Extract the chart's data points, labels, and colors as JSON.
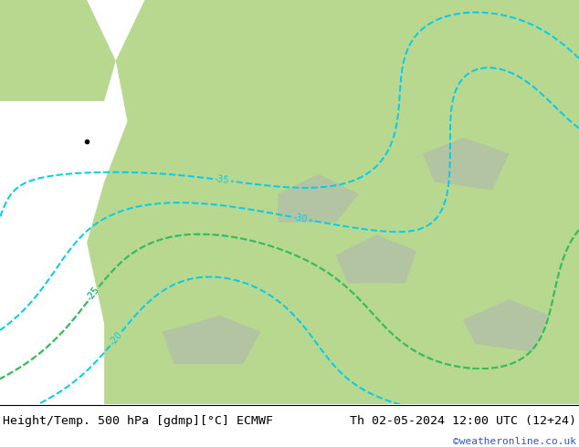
{
  "title_left": "Height/Temp. 500 hPa [gdmp][°C] ECMWF",
  "title_right": "Th 02-05-2024 12:00 UTC (12+24)",
  "watermark": "©weatheronline.co.uk",
  "land_color": "#b8d890",
  "ocean_color": "#d0e8f8",
  "gray_color": "#b0b8b0",
  "bottom_bar_color": "#ffffff",
  "title_fontsize": 9.5,
  "watermark_color": "#3355cc",
  "text_color": "#000000",
  "fig_width": 6.34,
  "fig_height": 4.9,
  "height_levels": [
    544,
    552,
    560,
    568,
    576,
    584,
    588
  ],
  "temp_cyan_levels": [
    -35,
    -30,
    -25,
    -20,
    -15
  ],
  "temp_orange_levels": [
    -10,
    -5,
    0,
    5,
    10,
    15
  ],
  "temp_green_levels": [
    -25
  ]
}
